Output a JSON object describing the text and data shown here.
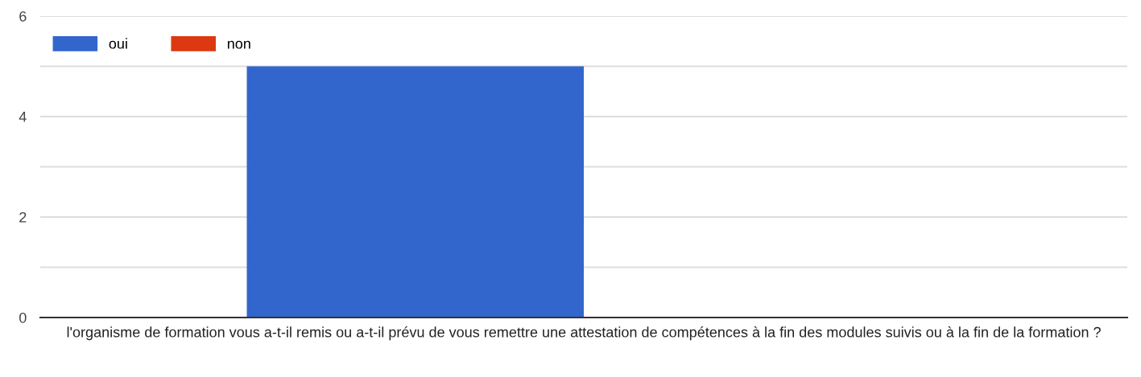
{
  "chart_data": {
    "type": "bar",
    "categories": [
      "l'organisme de formation vous a-t-il remis ou a-t-il prévu de vous remettre une attestation de compétences à la fin des modules suivis ou à la fin de la formation ?"
    ],
    "series": [
      {
        "name": "oui",
        "color": "#3366cc",
        "values": [
          5
        ]
      },
      {
        "name": "non",
        "color": "#dc3912",
        "values": [
          0
        ]
      }
    ],
    "ylim": [
      0,
      6
    ],
    "yticks": [
      0,
      {
        "value": 1,
        "label": null
      },
      2,
      {
        "value": 3,
        "label": null
      },
      4,
      {
        "value": 5,
        "label": null
      },
      6
    ],
    "grid": "y",
    "legend": "top left"
  }
}
